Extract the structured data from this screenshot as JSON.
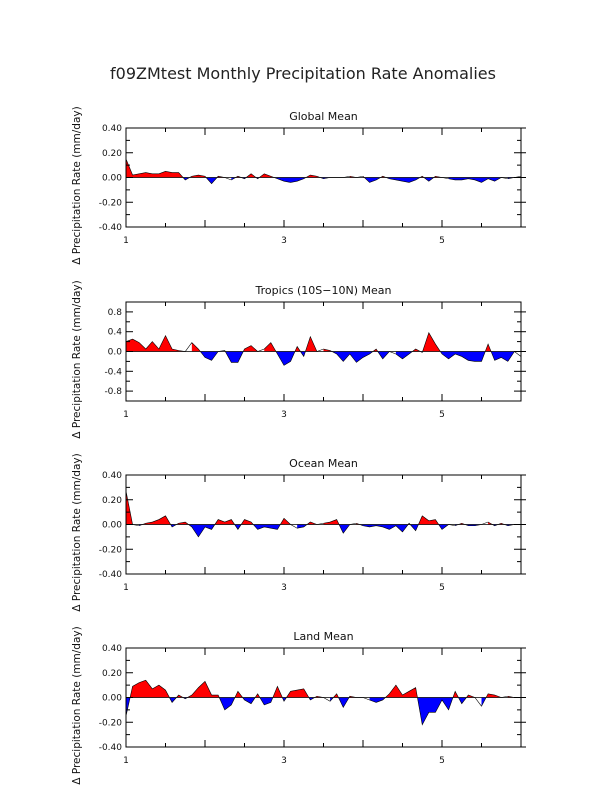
{
  "chart_data": {
    "type": "area",
    "title": "f09ZMtest Monthly Precipitation Rate Anomalies",
    "panels": [
      {
        "name": "global",
        "title": "Global Mean",
        "ylabel": "Δ Precipitation Rate  (mm/day)",
        "ylim": [
          -0.4,
          0.4
        ],
        "yticks": [
          "0.40",
          "0.20",
          "0.00",
          "-0.20",
          "-0.40"
        ],
        "ytick_values": [
          0.4,
          0.2,
          0.0,
          -0.2,
          -0.4
        ],
        "xlim": [
          1,
          6
        ],
        "xticks": [
          "1",
          "3",
          "5"
        ],
        "xtick_values": [
          1,
          3,
          5
        ],
        "values": [
          0.15,
          0.02,
          0.03,
          0.04,
          0.03,
          0.03,
          0.05,
          0.04,
          0.04,
          -0.02,
          0.01,
          0.02,
          0.01,
          -0.05,
          0.01,
          0.0,
          -0.02,
          0.01,
          -0.01,
          0.03,
          -0.01,
          0.03,
          0.01,
          -0.01,
          -0.03,
          -0.04,
          -0.03,
          -0.01,
          0.02,
          0.01,
          -0.01,
          0.0,
          0.0,
          0.0,
          0.01,
          0.0,
          0.01,
          -0.04,
          -0.02,
          0.01,
          -0.01,
          -0.02,
          -0.03,
          -0.04,
          -0.02,
          0.01,
          -0.03,
          0.01,
          0.0,
          -0.01,
          -0.02,
          -0.02,
          -0.01,
          -0.02,
          -0.04,
          -0.01,
          -0.03,
          0.0,
          -0.01,
          0.0,
          0.01
        ]
      },
      {
        "name": "tropics",
        "title": "Tropics (10S−10N) Mean",
        "ylabel": "Δ Precipitation Rate  (mm/day)",
        "ylim": [
          -1.0,
          1.0
        ],
        "yticks": [
          "0.8",
          "0.4",
          "0.0",
          "-0.4",
          "-0.8"
        ],
        "ytick_values": [
          0.8,
          0.4,
          0.0,
          -0.4,
          -0.8
        ],
        "xlim": [
          1,
          6
        ],
        "xticks": [
          "1",
          "3",
          "5"
        ],
        "xtick_values": [
          1,
          3,
          5
        ],
        "values": [
          0.2,
          0.25,
          0.18,
          0.05,
          0.2,
          0.05,
          0.32,
          0.05,
          0.02,
          0.0,
          0.18,
          0.05,
          -0.12,
          -0.18,
          0.0,
          0.02,
          -0.22,
          -0.22,
          0.05,
          0.12,
          0.0,
          0.05,
          0.18,
          -0.05,
          -0.28,
          -0.2,
          0.1,
          -0.1,
          0.3,
          0.0,
          0.05,
          0.02,
          -0.05,
          -0.2,
          -0.05,
          -0.22,
          -0.12,
          -0.05,
          0.05,
          -0.15,
          0.0,
          -0.05,
          -0.15,
          -0.05,
          0.05,
          -0.02,
          0.38,
          0.15,
          -0.05,
          -0.15,
          -0.05,
          -0.1,
          -0.18,
          -0.2,
          -0.2,
          0.15,
          -0.18,
          -0.12,
          -0.2,
          0.0,
          -0.1
        ]
      },
      {
        "name": "ocean",
        "title": "Ocean Mean",
        "ylabel": "Δ Precipitation Rate  (mm/day)",
        "ylim": [
          -0.4,
          0.4
        ],
        "yticks": [
          "0.40",
          "0.20",
          "0.00",
          "-0.20",
          "-0.40"
        ],
        "ytick_values": [
          0.4,
          0.2,
          0.0,
          -0.2,
          -0.4
        ],
        "xlim": [
          1,
          6
        ],
        "xticks": [
          "1",
          "3",
          "5"
        ],
        "xtick_values": [
          1,
          3,
          5
        ],
        "values": [
          0.27,
          0.0,
          -0.01,
          0.01,
          0.02,
          0.04,
          0.07,
          -0.02,
          0.01,
          0.02,
          -0.02,
          -0.1,
          -0.02,
          -0.04,
          0.04,
          0.02,
          0.04,
          -0.04,
          0.04,
          0.02,
          -0.04,
          -0.02,
          -0.03,
          -0.04,
          0.05,
          0.0,
          -0.03,
          -0.02,
          0.02,
          0.0,
          0.01,
          0.02,
          0.04,
          -0.07,
          0.0,
          0.01,
          -0.01,
          -0.02,
          -0.01,
          -0.02,
          -0.04,
          -0.01,
          -0.06,
          0.01,
          -0.05,
          0.07,
          0.03,
          0.04,
          -0.04,
          0.0,
          -0.01,
          0.01,
          -0.01,
          -0.01,
          0.0,
          0.02,
          -0.01,
          0.01,
          -0.01,
          0.0,
          0.0
        ]
      },
      {
        "name": "land",
        "title": "Land Mean",
        "ylabel": "Δ Precipitation Rate  (mm/day)",
        "ylim": [
          -0.4,
          0.4
        ],
        "yticks": [
          "0.40",
          "0.20",
          "0.00",
          "-0.20",
          "-0.40"
        ],
        "ytick_values": [
          0.4,
          0.2,
          0.0,
          -0.2,
          -0.4
        ],
        "xlim": [
          1,
          6
        ],
        "xticks": [
          "1",
          "3",
          "5"
        ],
        "xtick_values": [
          1,
          3,
          5
        ],
        "values": [
          -0.15,
          0.09,
          0.12,
          0.14,
          0.07,
          0.1,
          0.06,
          -0.04,
          0.02,
          -0.01,
          0.02,
          0.08,
          0.13,
          0.02,
          0.02,
          -0.1,
          -0.06,
          0.05,
          -0.02,
          -0.05,
          0.03,
          -0.06,
          -0.04,
          0.09,
          -0.03,
          0.05,
          0.06,
          0.07,
          -0.02,
          0.01,
          0.0,
          -0.03,
          0.03,
          -0.08,
          0.01,
          0.0,
          0.0,
          -0.02,
          -0.04,
          -0.02,
          0.03,
          0.1,
          0.02,
          0.05,
          0.08,
          -0.22,
          -0.12,
          -0.12,
          -0.02,
          -0.1,
          0.05,
          -0.05,
          0.02,
          0.0,
          -0.07,
          0.03,
          0.02,
          0.0,
          0.01,
          0.0,
          0.0
        ]
      }
    ]
  }
}
